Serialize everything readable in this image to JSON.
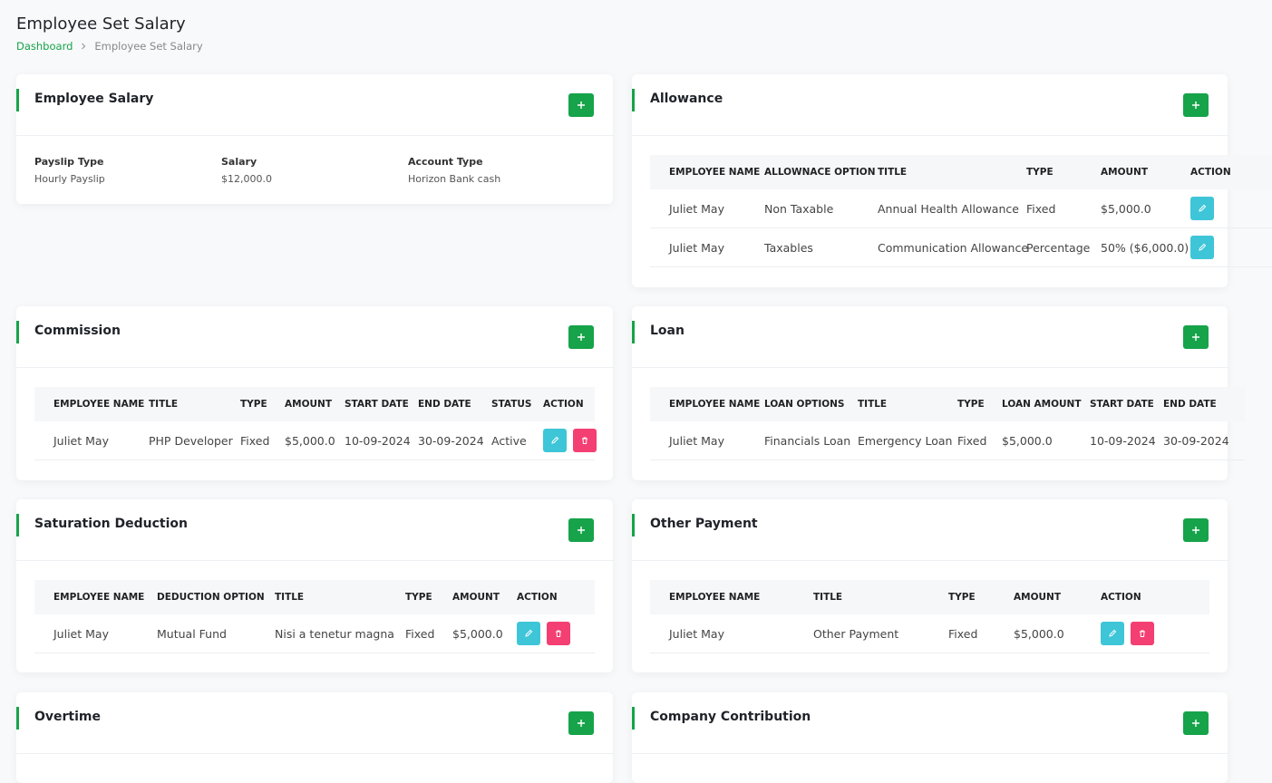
{
  "header": {
    "title": "Employee Set Salary",
    "breadcrumb": [
      "Dashboard",
      "Employee Set Salary"
    ]
  },
  "cards": [
    {
      "title": "Employee Salary",
      "fields": [
        {
          "label": "Payslip Type",
          "value": "Hourly Payslip"
        },
        {
          "label": "Salary",
          "value": "$12,000.0"
        },
        {
          "label": "Account Type",
          "value": "Horizon Bank cash"
        }
      ]
    },
    {
      "title": "Allowance",
      "table": {
        "columns": [
          "EMPLOYEE NAME",
          "ALLOWNACE OPTION",
          "TITLE",
          "TYPE",
          "AMOUNT",
          "ACTION"
        ],
        "rows": [
          [
            "Juliet May",
            "Non Taxable",
            "Annual Health Allowance",
            "Fixed",
            "$5,000.0"
          ],
          [
            "Juliet May",
            "Taxables",
            "Communication Allowance",
            "Percentage",
            "50% ($6,000.0)"
          ]
        ]
      }
    },
    {
      "title": "Commission",
      "table": {
        "columns": [
          "EMPLOYEE NAME",
          "TITLE",
          "TYPE",
          "AMOUNT",
          "START DATE",
          "END DATE",
          "STATUS",
          "ACTION"
        ],
        "rows": [
          [
            "Juliet May",
            "PHP Developer",
            "Fixed",
            "$5,000.0",
            "10-09-2024",
            "30-09-2024",
            "Active"
          ]
        ]
      }
    },
    {
      "title": "Loan",
      "table": {
        "columns": [
          "EMPLOYEE NAME",
          "LOAN OPTIONS",
          "TITLE",
          "TYPE",
          "LOAN AMOUNT",
          "START DATE",
          "END DATE"
        ],
        "rows": [
          [
            "Juliet May",
            "Financials Loan",
            "Emergency Loan",
            "Fixed",
            "$5,000.0",
            "10-09-2024",
            "30-09-2024"
          ]
        ]
      }
    },
    {
      "title": "Saturation Deduction",
      "table": {
        "columns": [
          "EMPLOYEE NAME",
          "DEDUCTION OPTION",
          "TITLE",
          "TYPE",
          "AMOUNT",
          "ACTION"
        ],
        "rows": [
          [
            "Juliet May",
            "Mutual Fund",
            "Nisi a tenetur magna",
            "Fixed",
            "$5,000.0"
          ]
        ]
      }
    },
    {
      "title": "Other Payment",
      "table": {
        "columns": [
          "EMPLOYEE NAME",
          "TITLE",
          "TYPE",
          "AMOUNT",
          "ACTION"
        ],
        "rows": [
          [
            "Juliet May",
            "Other Payment",
            "Fixed",
            "$5,000.0"
          ]
        ]
      }
    },
    {
      "title": "Overtime"
    },
    {
      "title": "Company Contribution"
    }
  ]
}
